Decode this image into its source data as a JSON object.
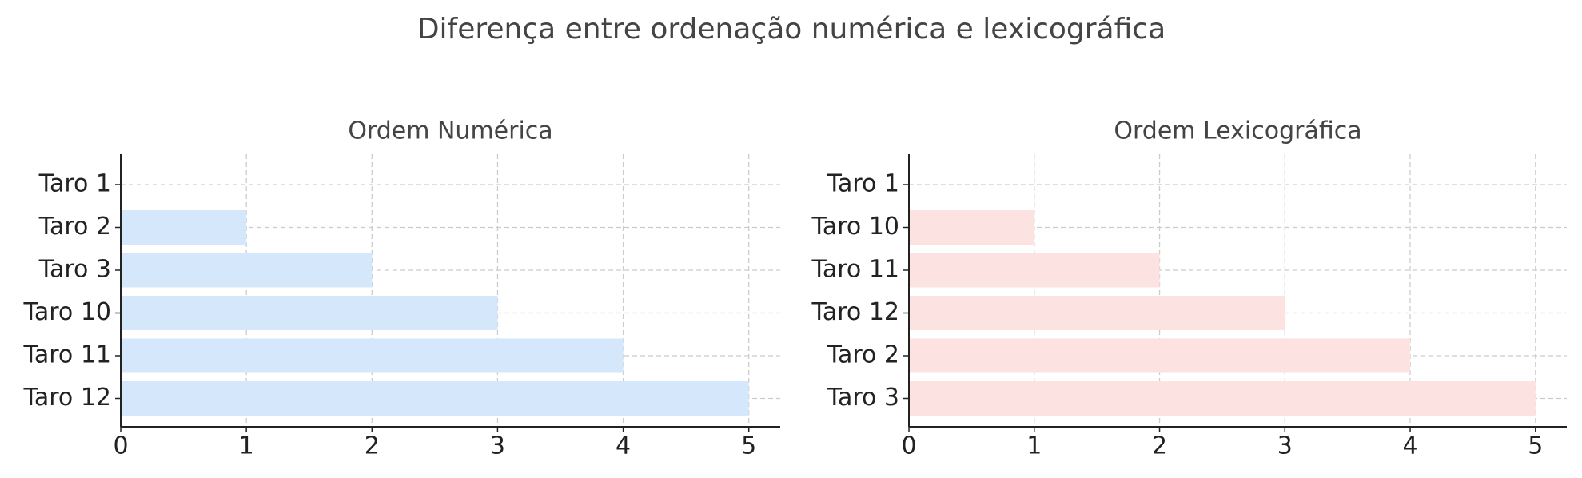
{
  "title": "Diferença entre ordenação numérica e lexicográfica",
  "chart_data": [
    {
      "type": "barh",
      "title": "Ordem Numérica",
      "categories": [
        "Taro 1",
        "Taro 2",
        "Taro 3",
        "Taro 10",
        "Taro 11",
        "Taro 12"
      ],
      "values": [
        0,
        1,
        2,
        3,
        4,
        5
      ],
      "color": "#d5e7fb",
      "xlim": [
        0,
        5.25
      ],
      "xticks": [
        0,
        1,
        2,
        3,
        4,
        5
      ],
      "grid": true
    },
    {
      "type": "barh",
      "title": "Ordem Lexicográfica",
      "categories": [
        "Taro 1",
        "Taro 10",
        "Taro 11",
        "Taro 12",
        "Taro 2",
        "Taro 3"
      ],
      "values": [
        0,
        1,
        2,
        3,
        4,
        5
      ],
      "color": "#fde2e2",
      "xlim": [
        0,
        5.25
      ],
      "xticks": [
        0,
        1,
        2,
        3,
        4,
        5
      ],
      "grid": true
    }
  ]
}
